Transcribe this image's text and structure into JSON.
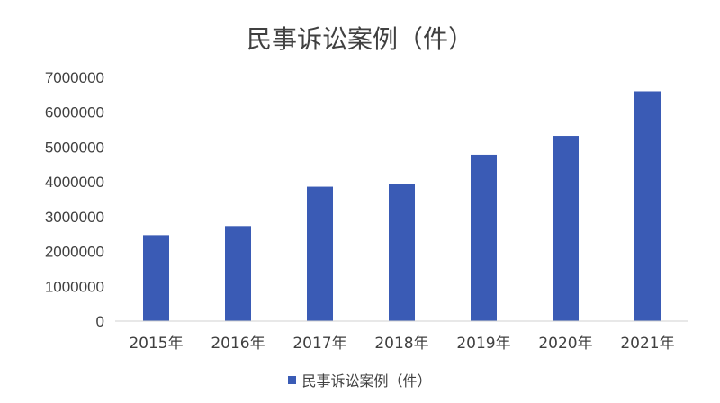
{
  "chart_data": {
    "type": "bar",
    "title": "民事诉讼案例（件）",
    "categories": [
      "2015年",
      "2016年",
      "2017年",
      "2018年",
      "2019年",
      "2020年",
      "2021年"
    ],
    "series": [
      {
        "name": "民事诉讼案例（件）",
        "values": [
          2470000,
          2730000,
          3860000,
          3950000,
          4780000,
          5320000,
          6600000
        ],
        "color": "#3a5bb5"
      }
    ],
    "yticks": [
      "0",
      "1000000",
      "2000000",
      "3000000",
      "4000000",
      "5000000",
      "6000000",
      "7000000"
    ],
    "ylim": [
      0,
      7000000
    ],
    "grid": false,
    "legend": "bottom"
  }
}
